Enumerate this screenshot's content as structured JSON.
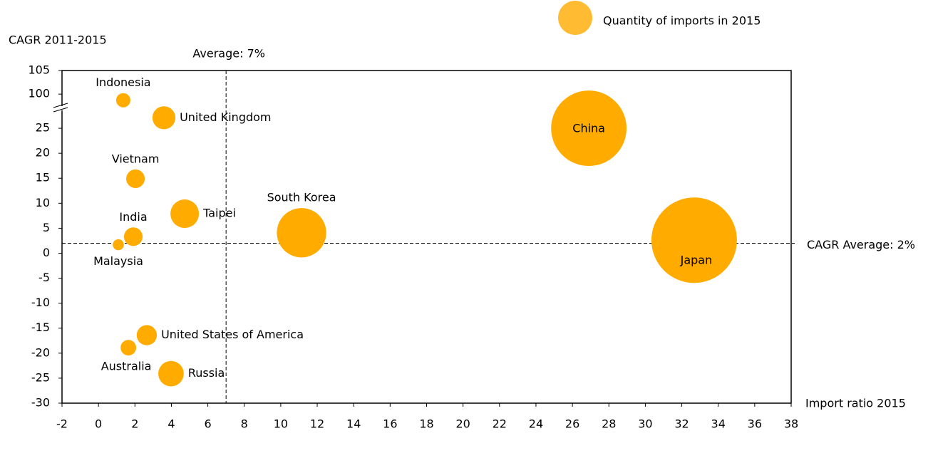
{
  "chart_data": {
    "type": "bubble",
    "x_label": "Import ratio 2015",
    "y_label": "CAGR 2011-2015",
    "xlim": [
      -2,
      38
    ],
    "xticks": [
      -2,
      0,
      2,
      4,
      6,
      8,
      10,
      12,
      14,
      16,
      18,
      20,
      22,
      24,
      26,
      28,
      30,
      32,
      34,
      36,
      38
    ],
    "ylim": [
      -30,
      105
    ],
    "y_break": [
      29,
      97
    ],
    "yticks": [
      -30,
      -25,
      -20,
      -15,
      -10,
      -5,
      0,
      5,
      10,
      15,
      20,
      25,
      100,
      105
    ],
    "reference_lines": {
      "x": {
        "value": 7,
        "label": "Average: 7%"
      },
      "y": {
        "value": 2,
        "label": "CAGR Average: 2%"
      }
    },
    "legend": "top-right",
    "series": [
      {
        "name": "Quantity of imports in 2015",
        "color": "#ffab00",
        "labels": [
          "Indonesia",
          "United Kingdom",
          "Vietnam",
          "India",
          "Malaysia",
          "Taipei",
          "South Korea",
          "China",
          "Japan",
          "United States of America",
          "Australia",
          "Russia"
        ],
        "x": [
          1.36,
          3.59,
          2.03,
          1.91,
          1.09,
          4.73,
          11.14,
          26.9,
          32.68,
          2.65,
          1.64,
          3.98
        ],
        "values": [
          98.7,
          27.1,
          14.9,
          3.3,
          1.7,
          7.9,
          4.1,
          25,
          2.6,
          -16.4,
          -18.9,
          -24.1
        ],
        "sizes": [
          1,
          2.6,
          1.7,
          1.7,
          0.6,
          4,
          12,
          28,
          36,
          2,
          1.2,
          3.2
        ]
      }
    ]
  }
}
